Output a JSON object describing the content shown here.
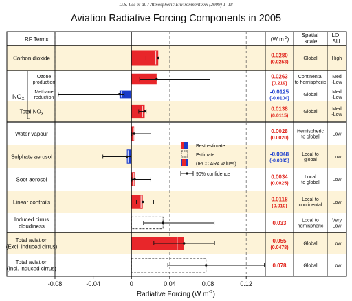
{
  "header": {
    "citation": "D.S. Lee et al. / Atmospheric Environment xxx (2009) 1–18"
  },
  "chart_data": {
    "type": "bar",
    "orientation": "horizontal",
    "title": "Aviation Radiative Forcing Components in 2005",
    "xlabel": "Radiative Forcing  (W m",
    "xlabel_sup": "-2",
    "xlabel_close": ")",
    "xlim": [
      -0.08,
      0.14
    ],
    "xticks": [
      -0.08,
      -0.04,
      0,
      0.04,
      0.08,
      0.12
    ],
    "xtick_labels": [
      "-0.08",
      "-0.04",
      "0",
      "0.04",
      "0.08",
      "0.12"
    ],
    "grid": "dashed vertical at ticks",
    "column_headers": {
      "terms": "RF Terms",
      "units": "(W m",
      "units_sup": "-2",
      "units_close": ")",
      "scale_line1": "Spatial",
      "scale_line2": "scale",
      "losu_line1": "LO",
      "losu_line2": "SU"
    },
    "nox_group_label": "NO",
    "nox_group_sub": "X",
    "legend": {
      "placement": "middle-right",
      "best": "Best estimate",
      "estimate": "Estimate",
      "ipcc": "(IPCC AR4 values)",
      "confidence": "90% confidence"
    },
    "colors": {
      "positive": "#e8262a",
      "negative": "#1a3cc9",
      "shade": "#fdf3d8",
      "value_positive": "#e0261e",
      "value_negative": "#1e3fce"
    },
    "rows": [
      {
        "label_lines": [
          "Carbon dioxide"
        ],
        "value": 0.028,
        "value_text": "0.0280",
        "ipcc": 0.0253,
        "ipcc_text": "(0.0253)",
        "ci": [
          0.0152,
          0.0403
        ],
        "bar_style": "solid",
        "scale_lines": [
          "Global"
        ],
        "losu_lines": [
          "High"
        ],
        "shaded": true
      },
      {
        "label_lines": [
          "Ozone",
          "production"
        ],
        "value": 0.0263,
        "value_text": "0.0263",
        "ipcc": 0.219,
        "ipcc_text": "(0.219)",
        "ci": [
          0.0086,
          0.0821
        ],
        "bar_style": "solid",
        "scale_lines": [
          "Continental",
          "to hemispheric"
        ],
        "losu_lines": [
          "Med",
          "-Low"
        ],
        "shaded": false
      },
      {
        "label_lines": [
          "Methane",
          "reduction"
        ],
        "value": -0.0125,
        "value_text": "-0.0125",
        "ipcc": -0.0104,
        "ipcc_text": "(-0.0104)",
        "ci": [
          -0.0765,
          -0.0076
        ],
        "bar_style": "solid",
        "scale_lines": [
          "Global"
        ],
        "losu_lines": [
          "Med",
          "-Low"
        ],
        "shaded": false
      },
      {
        "label_lines": [
          "Total NO"
        ],
        "label_sub": "X",
        "value": 0.0138,
        "value_text": "0.0138",
        "ipcc": 0.0115,
        "ipcc_text": "(0.0115)",
        "ci": [
          0.0076,
          0.0154
        ],
        "bar_style": "solid",
        "scale_lines": [
          "Global"
        ],
        "losu_lines": [
          "Med",
          "-Low"
        ],
        "shaded": true
      },
      {
        "label_lines": [
          "Water vapour"
        ],
        "value": 0.0028,
        "value_text": "0.0028",
        "ipcc": 0.002,
        "ipcc_text": "(0.0020)",
        "ci": [
          0.0004,
          0.0203
        ],
        "bar_style": "solid",
        "scale_lines": [
          "Hemispheric",
          "to global"
        ],
        "losu_lines": [
          "Low"
        ],
        "shaded": false
      },
      {
        "label_lines": [
          "Sulphate aerosol"
        ],
        "value": -0.0048,
        "value_text": "-0.0048",
        "ipcc": -0.0035,
        "ipcc_text": "(-0.0035)",
        "ci": [
          -0.0299,
          -0.0007
        ],
        "bar_style": "solid",
        "scale_lines": [
          "Local to",
          "global"
        ],
        "losu_lines": [
          "Low"
        ],
        "shaded": true
      },
      {
        "label_lines": [
          "Soot aerosol"
        ],
        "value": 0.0034,
        "value_text": "0.0034",
        "ipcc": 0.0025,
        "ipcc_text": "(0.0025)",
        "ci": [
          0.0005,
          0.0202
        ],
        "bar_style": "solid",
        "scale_lines": [
          "Local",
          "to global"
        ],
        "losu_lines": [
          "Low"
        ],
        "shaded": false
      },
      {
        "label_lines": [
          "Linear contrails"
        ],
        "value": 0.0118,
        "value_text": "0.0118",
        "ipcc": 0.01,
        "ipcc_text": "(0.010)",
        "ci": [
          0.0052,
          0.0232
        ],
        "bar_style": "solid",
        "scale_lines": [
          "Local to",
          "continental"
        ],
        "losu_lines": [
          "Low"
        ],
        "shaded": true
      },
      {
        "label_lines": [
          "Induced cirrus",
          "cloudiness"
        ],
        "value": 0.033,
        "value_text": "0.033",
        "ipcc": null,
        "ipcc_text": "",
        "ci": [
          0.0126,
          0.0865
        ],
        "bar_style": "dashed",
        "scale_lines": [
          "Local to",
          "hemispheric"
        ],
        "losu_lines": [
          "Very",
          "Low"
        ],
        "shaded": false
      },
      {
        "label_lines": [
          "Total aviation",
          "(Excl. induced cirrus)"
        ],
        "value": 0.055,
        "value_text": "0.055",
        "ipcc": 0.0478,
        "ipcc_text": "(0.0478)",
        "ci": [
          0.0234,
          0.0869
        ],
        "bar_style": "solid",
        "scale_lines": [
          "Global"
        ],
        "losu_lines": [
          "Low"
        ],
        "shaded": true
      },
      {
        "label_lines": [
          "Total aviation",
          "(Incl. induced cirrus)"
        ],
        "value": 0.078,
        "value_text": "0.078",
        "ipcc": null,
        "ipcc_text": "",
        "ci": [
          0.038,
          0.139
        ],
        "bar_style": "dashed",
        "scale_lines": [
          "Global"
        ],
        "losu_lines": [
          "Low"
        ],
        "shaded": false
      }
    ]
  }
}
